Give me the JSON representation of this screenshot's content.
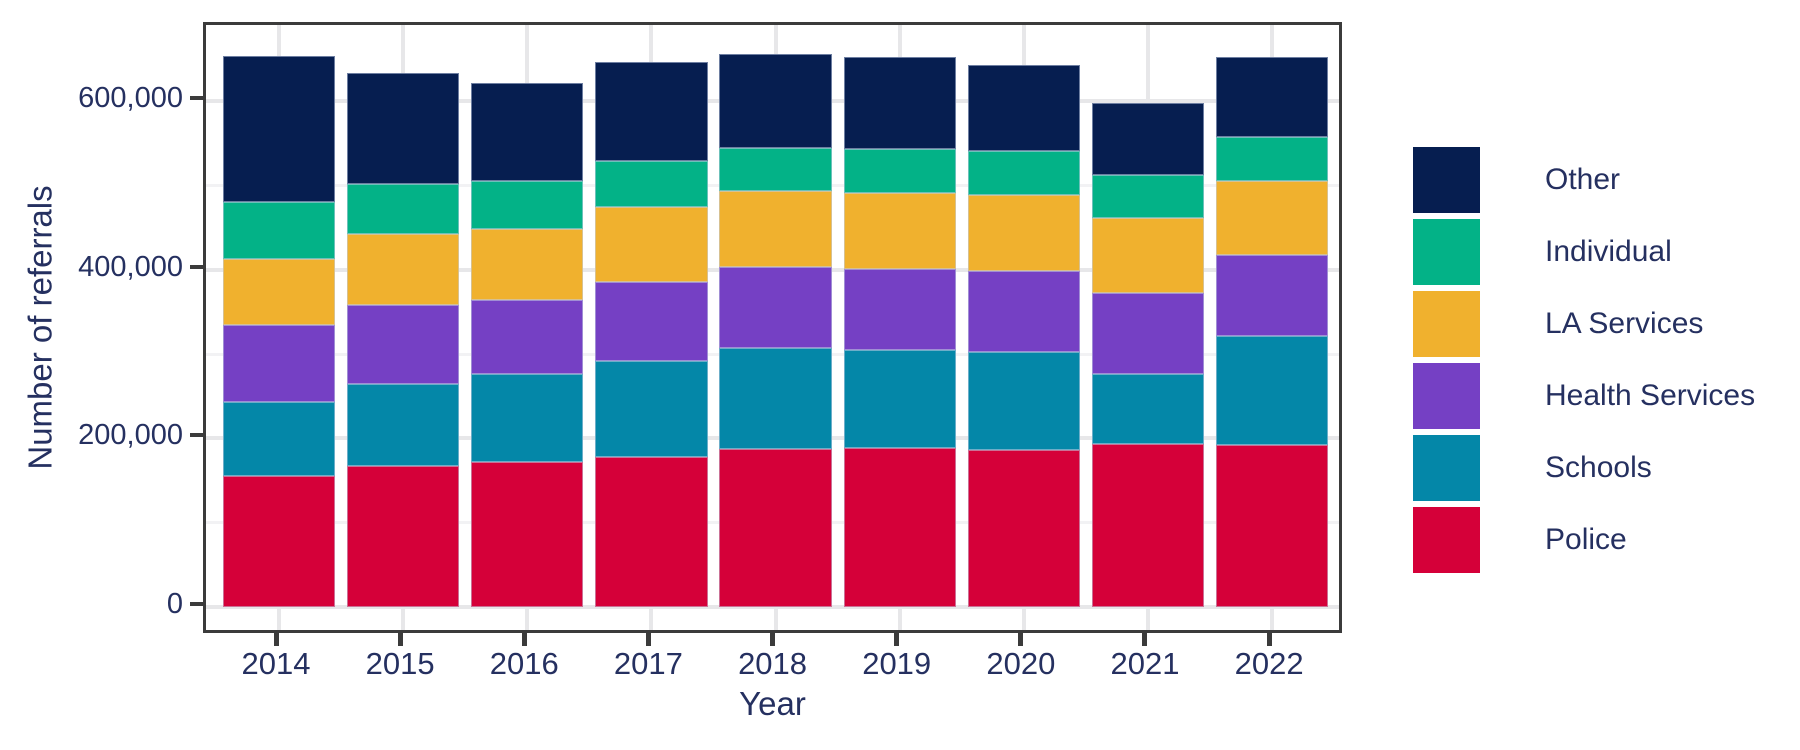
{
  "chart_data": {
    "type": "bar",
    "stacked": true,
    "title": "",
    "xlabel": "Year",
    "ylabel": "Number of referrals",
    "categories": [
      "2014",
      "2015",
      "2016",
      "2017",
      "2018",
      "2019",
      "2020",
      "2021",
      "2022"
    ],
    "series": [
      {
        "name": "Police",
        "color": "#d50039",
        "values": [
          155000,
          167000,
          172000,
          178000,
          187000,
          189000,
          186000,
          193000,
          192000
        ]
      },
      {
        "name": "Schools",
        "color": "#0487a8",
        "values": [
          88000,
          98000,
          104000,
          114000,
          120000,
          116000,
          117000,
          83000,
          130000
        ]
      },
      {
        "name": "Health Services",
        "color": "#7540c4",
        "values": [
          92000,
          93000,
          88000,
          94000,
          96000,
          96000,
          96000,
          96000,
          96000
        ]
      },
      {
        "name": "LA Services",
        "color": "#f0b12e",
        "values": [
          78000,
          84000,
          85000,
          89000,
          90000,
          90000,
          90000,
          89000,
          87000
        ]
      },
      {
        "name": "Individual",
        "color": "#03b287",
        "values": [
          68000,
          60000,
          56000,
          54000,
          52000,
          53000,
          52000,
          51000,
          53000
        ]
      },
      {
        "name": "Other",
        "color": "#061e50",
        "values": [
          173000,
          132000,
          117000,
          118000,
          111000,
          109000,
          102000,
          86000,
          94000
        ]
      }
    ],
    "totals": [
      654000,
      634000,
      622000,
      647000,
      656000,
      653000,
      643000,
      598000,
      652000
    ],
    "legend": [
      {
        "label": "Other",
        "color": "#061e50"
      },
      {
        "label": "Individual",
        "color": "#03b287"
      },
      {
        "label": "LA Services",
        "color": "#f0b12e"
      },
      {
        "label": "Health Services",
        "color": "#7540c4"
      },
      {
        "label": "Schools",
        "color": "#0487a8"
      },
      {
        "label": "Police",
        "color": "#d50039"
      }
    ],
    "legend_position": "right",
    "y_ticks": [
      {
        "value": 0,
        "label": "0"
      },
      {
        "value": 200000,
        "label": "200,000"
      },
      {
        "value": 400000,
        "label": "400,000"
      },
      {
        "value": 600000,
        "label": "600,000"
      }
    ],
    "y_minor_ticks": [
      100000,
      300000,
      500000
    ],
    "ylim": [
      0,
      690000
    ],
    "grid": "horizontal major+minor, vertical major at year centers"
  },
  "colors": {
    "text": "#253060",
    "axis_line": "#3b3b3b",
    "grid_major": "#e7e7e9",
    "grid_minor": "#f2f2f4",
    "background": "#ffffff"
  }
}
